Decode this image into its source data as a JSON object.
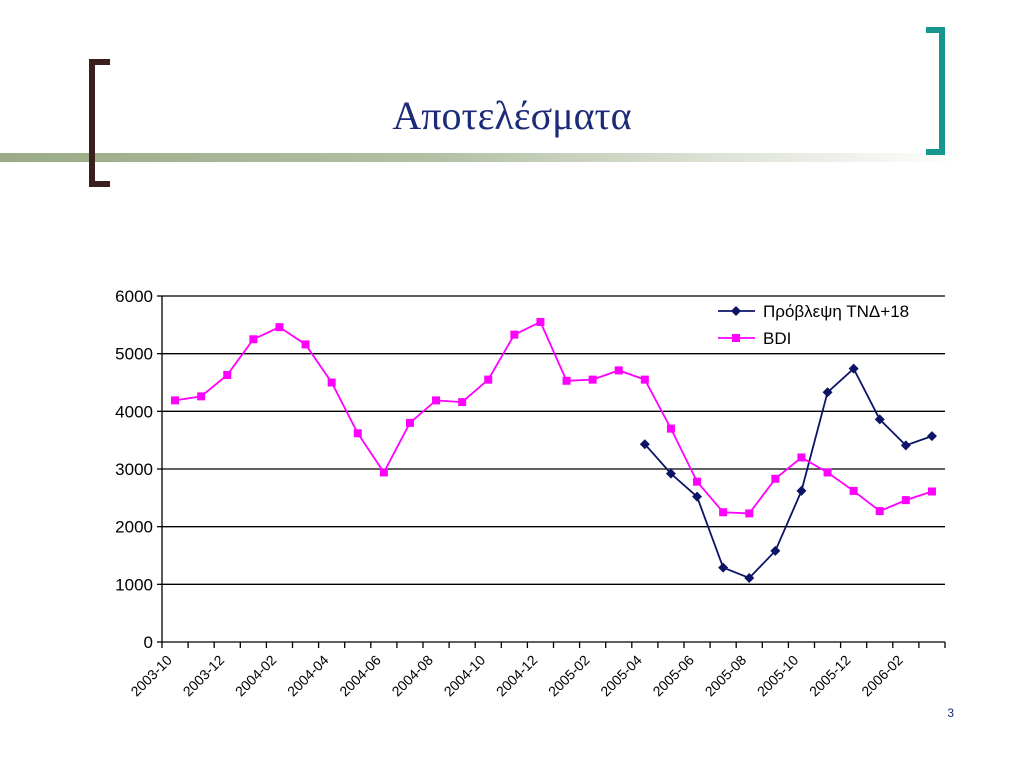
{
  "slide": {
    "title": "Αποτελέσματα",
    "page_number": "3"
  },
  "colors": {
    "title": "#1c2a78",
    "left_bracket": "#3b1f1c",
    "right_bracket": "#16968e",
    "bar_gradient": "#9aab86",
    "forecast_series": "#0d1466",
    "bdi_series": "#ff00ff"
  },
  "chart_data": {
    "type": "line",
    "categories": [
      "2003-10",
      "2003-11",
      "2003-12",
      "2004-01",
      "2004-02",
      "2004-03",
      "2004-04",
      "2004-05",
      "2004-06",
      "2004-07",
      "2004-08",
      "2004-09",
      "2004-10",
      "2004-11",
      "2004-12",
      "2005-01",
      "2005-02",
      "2005-03",
      "2005-04",
      "2005-05",
      "2005-06",
      "2005-07",
      "2005-08",
      "2005-09",
      "2005-10",
      "2005-11",
      "2005-12",
      "2006-01",
      "2006-02",
      "2006-03"
    ],
    "tick_labels": [
      "2003-10",
      "2003-12",
      "2004-02",
      "2004-04",
      "2004-06",
      "2004-08",
      "2004-10",
      "2004-12",
      "2005-02",
      "2005-04",
      "2005-06",
      "2005-08",
      "2005-10",
      "2005-12",
      "2006-02"
    ],
    "series": [
      {
        "name": "Πρόβλεψη ΤΝΔ+18",
        "marker": "diamond",
        "values": [
          null,
          null,
          null,
          null,
          null,
          null,
          null,
          null,
          null,
          null,
          null,
          null,
          null,
          null,
          null,
          null,
          null,
          null,
          3430,
          2920,
          2520,
          1290,
          1110,
          1580,
          2620,
          4330,
          4740,
          3860,
          3410,
          3570
        ]
      },
      {
        "name": "BDI",
        "marker": "square",
        "values": [
          4190,
          4260,
          4630,
          5250,
          5460,
          5160,
          4500,
          3620,
          2940,
          3800,
          4190,
          4160,
          4550,
          5330,
          5550,
          4530,
          4550,
          4710,
          4550,
          3700,
          2780,
          2250,
          2230,
          2830,
          3200,
          2940,
          2620,
          2270,
          2460,
          2610
        ]
      }
    ],
    "ylim": [
      0,
      6000
    ],
    "yticks": [
      0,
      1000,
      2000,
      3000,
      4000,
      5000,
      6000
    ],
    "grid": "horizontal",
    "legend": "top-right"
  }
}
